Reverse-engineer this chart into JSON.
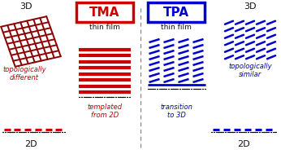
{
  "fig_width": 3.46,
  "fig_height": 1.89,
  "dpi": 100,
  "red": "#cc0000",
  "blue": "#0000cc",
  "dark_red": "#8B0000",
  "dark": "#111111",
  "gray": "#888888",
  "tma_label": "TMA",
  "tpa_label": "TPA",
  "thin_film_label": "thin film",
  "topo_diff_label": "topologically\ndifferent",
  "topo_sim_label": "topologically\nsimilar",
  "templated_label": "templated\nfrom 2D",
  "transition_label": "transition\nto 3D",
  "label_3d": "3D",
  "label_2d": "2D",
  "xlim": [
    0,
    346
  ],
  "ylim": [
    0,
    189
  ]
}
